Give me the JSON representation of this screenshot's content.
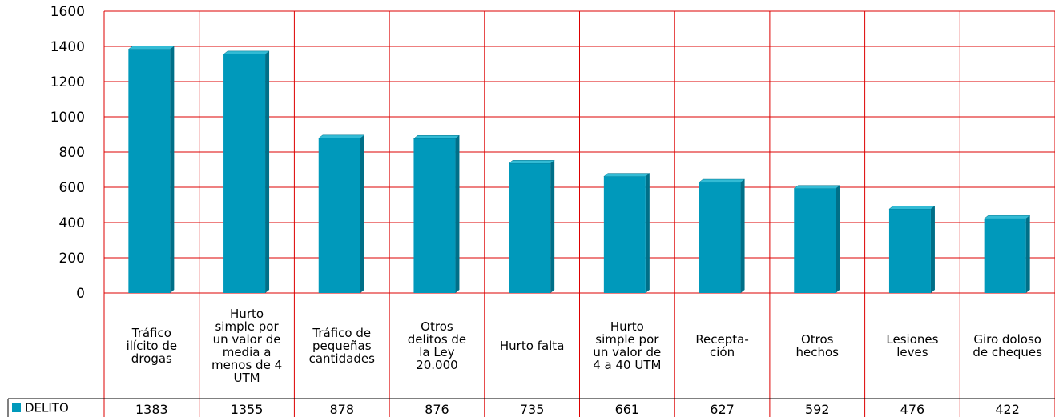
{
  "chart_data": {
    "type": "bar",
    "categories": [
      "Tráfico ilícito de drogas",
      "Hurto simple por un valor de media a menos de 4 UTM",
      "Tráfico de pequeñas cantidades",
      "Otros delitos de la Ley 20.000",
      "Hurto falta",
      "Hurto simple por un valor de 4 a 40 UTM",
      "Recepta-ción",
      "Otros hechos",
      "Lesiones leves",
      "Giro doloso de cheques"
    ],
    "series": [
      {
        "name": "DELITO",
        "color": "#0099bb",
        "values": [
          1383,
          1355,
          878,
          876,
          735,
          661,
          627,
          592,
          476,
          422
        ]
      }
    ],
    "ylim": [
      0,
      1600
    ],
    "yticks": [
      0,
      200,
      400,
      600,
      800,
      1000,
      1200,
      1400,
      1600
    ],
    "grid": true
  }
}
